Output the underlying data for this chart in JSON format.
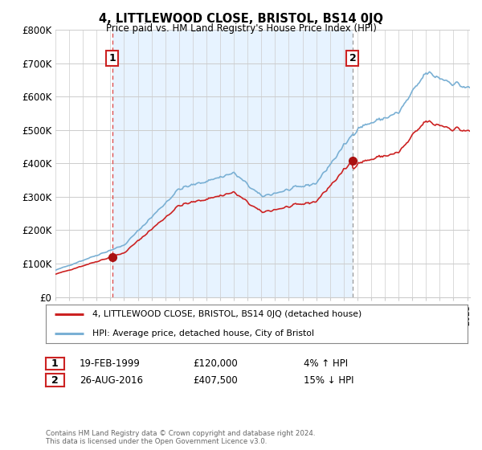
{
  "title": "4, LITTLEWOOD CLOSE, BRISTOL, BS14 0JQ",
  "subtitle": "Price paid vs. HM Land Registry's House Price Index (HPI)",
  "ylabel_ticks": [
    "£0",
    "£100K",
    "£200K",
    "£300K",
    "£400K",
    "£500K",
    "£600K",
    "£700K",
    "£800K"
  ],
  "ytick_values": [
    0,
    100000,
    200000,
    300000,
    400000,
    500000,
    600000,
    700000,
    800000
  ],
  "ylim": [
    0,
    800000
  ],
  "sale1_year": 1999.13,
  "sale1_price": 120000,
  "sale2_year": 2016.65,
  "sale2_price": 407500,
  "sale1_date": "19-FEB-1999",
  "sale1_pct": "4% ↑ HPI",
  "sale2_date": "26-AUG-2016",
  "sale2_pct": "15% ↓ HPI",
  "line_color_property": "#cc2222",
  "line_color_hpi": "#7ab0d4",
  "marker_color": "#aa1111",
  "vline1_color": "#dd4444",
  "vline2_color": "#999999",
  "shade_color": "#ddeeff",
  "legend_property": "4, LITTLEWOOD CLOSE, BRISTOL, BS14 0JQ (detached house)",
  "legend_hpi": "HPI: Average price, detached house, City of Bristol",
  "footnote": "Contains HM Land Registry data © Crown copyright and database right 2024.\nThis data is licensed under the Open Government Licence v3.0.",
  "background_color": "#ffffff",
  "grid_color": "#cccccc",
  "box_edge_color": "#cc2222",
  "xlim_start": 1995.0,
  "xlim_end": 2025.2
}
